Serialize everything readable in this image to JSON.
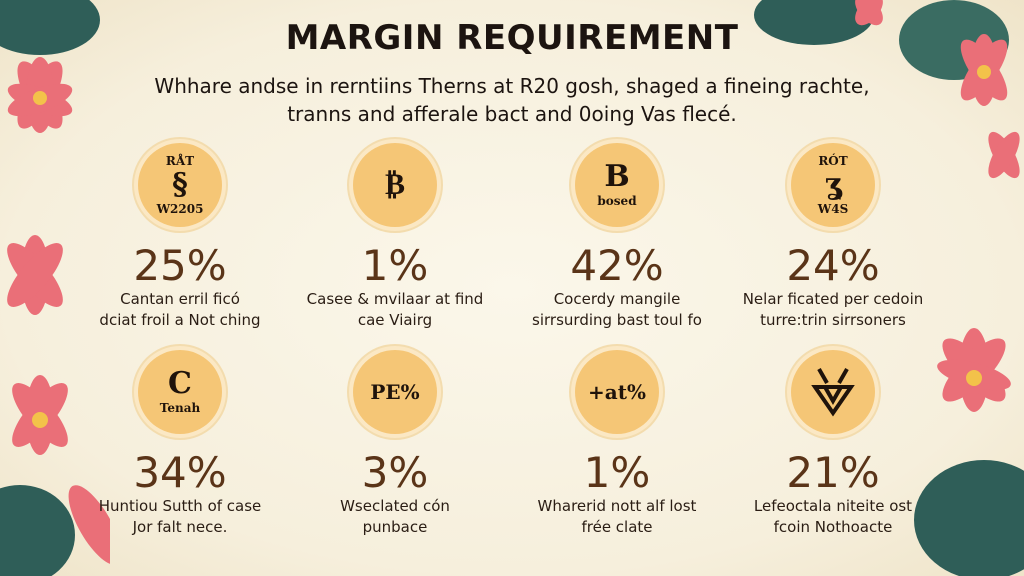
{
  "title": "MARGIN REQUIREMENT",
  "subtitle": [
    "Whhare andse in rerntiins Therns at R20 gosh, shaged a fineing rachte,",
    "tranns and afferale bact and 0oing Vas flecé."
  ],
  "items": [
    {
      "icon": "rat-coin-icon",
      "coin_top": "RÅT",
      "coin_mid": "§",
      "coin_bottom": "W2205",
      "percent": "25%",
      "desc": [
        "Cantan erril ficó",
        "dciat froil a Not ching"
      ]
    },
    {
      "icon": "bitcoin-icon",
      "coin_top": "",
      "coin_mid": "₿",
      "coin_bottom": "",
      "percent": "1%",
      "desc": [
        "Casee & mvilaar at find",
        "cae Viairg"
      ]
    },
    {
      "icon": "b-coin-icon",
      "coin_top": "B",
      "coin_mid": "",
      "coin_bottom": "bosed",
      "percent": "42%",
      "desc": [
        "Cocerdy mangile",
        "sirrsurding bast toul fo"
      ]
    },
    {
      "icon": "rot-coin-icon",
      "coin_top": "RÓT",
      "coin_mid": "ʓ",
      "coin_bottom": "W4S",
      "percent": "24%",
      "desc": [
        "Nelar ficated per cedoin",
        "turre:trin sirrsoners"
      ]
    },
    {
      "icon": "c-coin-icon",
      "coin_top": "C",
      "coin_mid": "",
      "coin_bottom": "Tenah",
      "percent": "34%",
      "desc": [
        "Huntiou Sutth of case",
        "Jor falt nece."
      ]
    },
    {
      "icon": "pe-percent-icon",
      "coin_top": "",
      "coin_mid": "PE%",
      "coin_bottom": "",
      "percent": "3%",
      "desc": [
        "Wseclated cón",
        "punbace"
      ]
    },
    {
      "icon": "rat-percent-icon",
      "coin_top": "",
      "coin_mid": "+at%",
      "coin_bottom": "",
      "percent": "1%",
      "desc": [
        "Wharerid nott alf lost",
        "frée clate"
      ]
    },
    {
      "icon": "fox-emblem-icon",
      "coin_top": "",
      "coin_mid": "",
      "coin_bottom": "",
      "percent": "21%",
      "desc": [
        "Lefeoctala niteite ost",
        "fcoin Nothoacte"
      ]
    }
  ],
  "colors": {
    "coin": "#f5c676",
    "percent": "#5a3418",
    "background": "#f8f2e2",
    "petal": "#ea6f78",
    "leaf": "#2f5e58"
  }
}
